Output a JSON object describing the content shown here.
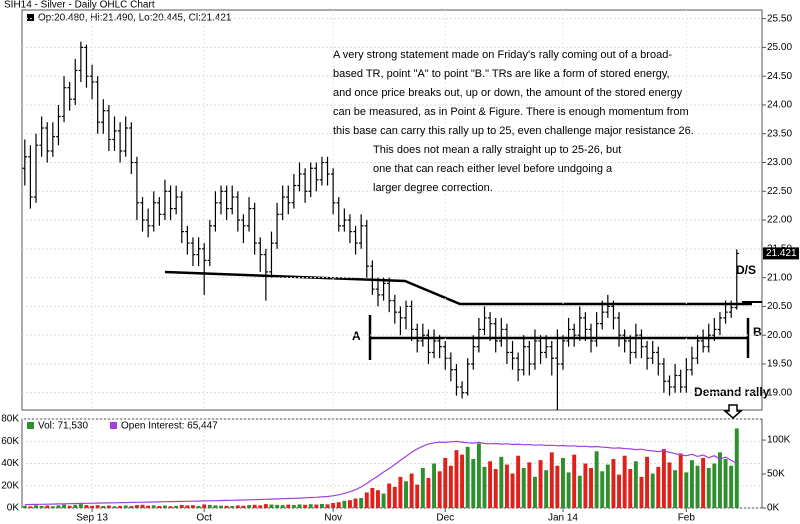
{
  "chart_data": [
    {
      "type": "ohlc",
      "title": "SIH14 - Silver - Daily OHLC Chart",
      "legend_text": "Op:20.480, Hi:21.490, Lo:20.445, Cl:21.421",
      "color": "#000000",
      "categories": [
        null,
        null,
        null,
        null,
        null,
        null,
        null,
        null,
        null,
        null,
        null,
        null,
        "Sep 13",
        null,
        null,
        null,
        null,
        null,
        null,
        null,
        null,
        null,
        null,
        null,
        null,
        null,
        null,
        null,
        null,
        null,
        null,
        null,
        "Oct",
        null,
        null,
        null,
        null,
        null,
        null,
        null,
        null,
        null,
        null,
        null,
        null,
        null,
        null,
        null,
        null,
        null,
        null,
        null,
        null,
        null,
        null,
        "Nov",
        null,
        null,
        null,
        null,
        null,
        null,
        null,
        null,
        null,
        null,
        null,
        null,
        null,
        null,
        null,
        null,
        null,
        null,
        null,
        "Dec",
        null,
        null,
        null,
        null,
        null,
        null,
        null,
        null,
        null,
        null,
        null,
        null,
        null,
        null,
        null,
        null,
        null,
        null,
        null,
        null,
        "Jan 14",
        null,
        null,
        null,
        null,
        null,
        null,
        null,
        null,
        null,
        null,
        null,
        null,
        null,
        null,
        null,
        null,
        null,
        null,
        null,
        null,
        null,
        "Feb",
        null,
        null,
        null,
        null,
        null,
        null,
        null,
        null,
        null
      ],
      "open": [
        22.9,
        23.1,
        22.4,
        23.3,
        23.6,
        23.2,
        23.45,
        23.8,
        24.3,
        24.1,
        24.6,
        25.0,
        24.5,
        24.4,
        23.7,
        23.9,
        23.4,
        23.55,
        23.2,
        23.6,
        23.0,
        22.3,
        22.0,
        21.9,
        22.3,
        22.1,
        22.5,
        22.2,
        22.4,
        21.8,
        21.6,
        21.4,
        21.5,
        21.3,
        21.9,
        22.3,
        22.5,
        22.2,
        22.4,
        22.0,
        21.9,
        22.2,
        21.6,
        21.4,
        21.1,
        21.6,
        22.1,
        22.4,
        22.3,
        22.6,
        22.8,
        22.5,
        22.9,
        22.7,
        23.0,
        22.8,
        22.3,
        21.9,
        22.0,
        21.8,
        21.6,
        21.9,
        21.2,
        20.8,
        20.7,
        20.9,
        20.6,
        20.4,
        20.3,
        20.5,
        20.1,
        19.9,
        20.0,
        19.7,
        19.9,
        19.8,
        19.6,
        19.4,
        19.1,
        19.0,
        19.5,
        19.8,
        20.1,
        20.3,
        20.2,
        19.9,
        20.1,
        19.7,
        19.6,
        19.4,
        19.8,
        19.5,
        19.9,
        19.7,
        19.8,
        19.6,
        19.5,
        19.9,
        20.1,
        20.0,
        20.3,
        20.1,
        19.9,
        20.2,
        20.4,
        20.5,
        20.3,
        20.0,
        19.9,
        19.7,
        20.0,
        19.8,
        19.6,
        19.7,
        19.5,
        19.2,
        19.1,
        19.3,
        19.1,
        19.4,
        19.6,
        19.9,
        19.8,
        20.0,
        20.1,
        20.3,
        20.4,
        20.48
      ],
      "high": [
        23.4,
        23.3,
        23.5,
        23.8,
        23.7,
        23.7,
        24.0,
        24.5,
        24.4,
        24.8,
        25.1,
        25.05,
        24.7,
        24.5,
        24.1,
        24.0,
        23.8,
        23.7,
        23.8,
        23.7,
        23.1,
        22.4,
        22.2,
        22.5,
        22.4,
        22.7,
        22.6,
        22.6,
        22.5,
        21.9,
        21.7,
        21.7,
        21.6,
        22.0,
        22.5,
        22.6,
        22.6,
        22.6,
        22.5,
        22.1,
        22.4,
        22.3,
        21.7,
        21.5,
        21.8,
        22.3,
        22.6,
        22.6,
        22.8,
        23.0,
        22.9,
        23.0,
        23.0,
        23.1,
        23.1,
        22.9,
        22.4,
        22.2,
        22.1,
        21.9,
        22.1,
        22.0,
        21.3,
        21.0,
        21.0,
        21.0,
        20.7,
        20.5,
        20.6,
        20.6,
        20.2,
        20.2,
        20.1,
        20.1,
        20.0,
        19.9,
        19.7,
        19.5,
        19.2,
        19.6,
        20.0,
        20.3,
        20.5,
        20.4,
        20.3,
        20.3,
        20.2,
        19.9,
        19.7,
        20.0,
        19.9,
        20.1,
        20.0,
        20.0,
        19.9,
        20.1,
        20.0,
        20.3,
        20.2,
        20.5,
        20.4,
        20.2,
        20.4,
        20.6,
        20.7,
        20.6,
        20.4,
        20.1,
        20.0,
        20.2,
        20.1,
        19.9,
        19.9,
        19.8,
        19.6,
        19.3,
        19.5,
        19.4,
        19.6,
        19.8,
        20.0,
        20.1,
        20.2,
        20.3,
        20.4,
        20.6,
        20.6,
        21.49
      ],
      "low": [
        22.6,
        22.2,
        22.3,
        23.1,
        23.0,
        23.1,
        23.3,
        23.7,
        23.9,
        24.0,
        24.4,
        24.3,
        24.1,
        23.5,
        23.5,
        23.2,
        23.2,
        23.0,
        23.1,
        22.8,
        22.0,
        21.8,
        21.7,
        21.8,
        21.9,
        22.0,
        22.0,
        22.1,
        21.6,
        21.4,
        21.2,
        21.2,
        20.7,
        21.2,
        21.8,
        22.1,
        22.0,
        22.1,
        21.8,
        21.6,
        21.8,
        21.4,
        21.1,
        20.6,
        21.0,
        21.5,
        22.0,
        22.1,
        22.2,
        22.5,
        22.3,
        22.4,
        22.5,
        22.6,
        22.6,
        22.1,
        21.8,
        21.8,
        21.6,
        21.4,
        21.5,
        21.0,
        20.7,
        20.5,
        20.6,
        20.4,
        20.2,
        20.0,
        20.1,
        19.9,
        19.7,
        19.8,
        19.5,
        19.6,
        19.6,
        19.4,
        19.2,
        18.95,
        18.9,
        18.95,
        19.4,
        19.7,
        20.0,
        19.9,
        19.7,
        19.8,
        19.5,
        19.4,
        19.2,
        19.3,
        19.3,
        19.4,
        19.5,
        19.6,
        19.3,
        18.7,
        19.4,
        19.8,
        19.8,
        19.9,
        19.9,
        19.7,
        19.8,
        20.1,
        20.3,
        20.1,
        19.8,
        19.7,
        19.5,
        19.6,
        19.6,
        19.4,
        19.5,
        19.3,
        19.0,
        18.95,
        19.0,
        19.0,
        19.0,
        19.3,
        19.5,
        19.7,
        19.7,
        19.9,
        20.0,
        20.2,
        20.3,
        20.445
      ],
      "close": [
        23.1,
        22.4,
        23.3,
        23.6,
        23.2,
        23.45,
        23.8,
        24.3,
        24.1,
        24.6,
        25.0,
        24.5,
        24.4,
        23.7,
        23.9,
        23.4,
        23.55,
        23.2,
        23.6,
        23.0,
        22.3,
        22.0,
        21.9,
        22.3,
        22.1,
        22.5,
        22.2,
        22.4,
        21.8,
        21.6,
        21.4,
        21.5,
        21.3,
        21.9,
        22.3,
        22.5,
        22.2,
        22.4,
        22.0,
        21.9,
        22.2,
        21.6,
        21.4,
        21.1,
        21.6,
        22.1,
        22.4,
        22.3,
        22.6,
        22.8,
        22.5,
        22.9,
        22.7,
        23.0,
        22.8,
        22.3,
        21.9,
        22.0,
        21.8,
        21.6,
        21.9,
        21.2,
        20.8,
        20.7,
        20.9,
        20.6,
        20.4,
        20.3,
        20.5,
        20.1,
        19.9,
        20.0,
        19.7,
        19.9,
        19.8,
        19.6,
        19.4,
        19.1,
        19.0,
        19.5,
        19.8,
        20.1,
        20.3,
        20.2,
        19.9,
        20.1,
        19.7,
        19.6,
        19.4,
        19.8,
        19.5,
        19.9,
        19.7,
        19.8,
        19.6,
        19.5,
        19.9,
        20.1,
        20.0,
        20.3,
        20.1,
        19.9,
        20.2,
        20.4,
        20.5,
        20.3,
        20.0,
        19.9,
        19.7,
        20.0,
        19.8,
        19.6,
        19.7,
        19.5,
        19.2,
        19.1,
        19.3,
        19.1,
        19.4,
        19.6,
        19.9,
        19.8,
        20.0,
        20.1,
        20.3,
        20.4,
        20.48,
        21.421
      ],
      "ylim": [
        18.7,
        25.65
      ],
      "yticks": [
        {
          "value": 19,
          "label": "19.00"
        },
        {
          "value": 19.5,
          "label": "19.50"
        },
        {
          "value": 20,
          "label": "20.00"
        },
        {
          "value": 20.5,
          "label": "20.50"
        },
        {
          "value": 21,
          "label": "21.00"
        },
        {
          "value": 21.5,
          "label": "21.50"
        },
        {
          "value": 22,
          "label": "22.00"
        },
        {
          "value": 22.5,
          "label": "22.50"
        },
        {
          "value": 23,
          "label": "23.00"
        },
        {
          "value": 23.5,
          "label": "23.50"
        },
        {
          "value": 24,
          "label": "24.00"
        },
        {
          "value": 24.5,
          "label": "24.50"
        },
        {
          "value": 25,
          "label": "25.00"
        },
        {
          "value": 25.5,
          "label": "25.50"
        }
      ],
      "grid": true,
      "annotations": {
        "paragraph_1": [
          "A very strong statement made on Friday's rally coming out of a broad-",
          "based TR, point \"A\" to point \"B.\"  TRs are like a form of stored energy,",
          "and once price breaks out, up or down, the amount of the stored energy",
          "can be measured, as in Point & Figure.  There is enough momentum from",
          "this base can carry this rally up to 25, even challenge major resistance 26."
        ],
        "paragraph_2": [
          "This does not mean a rally straight up to 25-26, but",
          "one that can reach either level before undgoing a",
          "larger degree correction."
        ],
        "point_a": "A",
        "point_b": "B",
        "ds": "D/S",
        "demand": "Demand rally"
      }
    },
    {
      "type": "bar",
      "series": [
        {
          "name": "Vol: 71,530",
          "up_color": "#2f8f2f",
          "down_color": "#e0201a",
          "values": [
            2000,
            1500,
            2500,
            1800,
            2200,
            1600,
            2400,
            3000,
            2000,
            2800,
            3500,
            2600,
            2000,
            2500,
            1800,
            2200,
            1500,
            1900,
            2300,
            1700,
            2600,
            2900,
            2100,
            2400,
            1800,
            2200,
            1600,
            2000,
            2700,
            2300,
            2500,
            1900,
            3200,
            2800,
            2400,
            2100,
            2000,
            1800,
            2300,
            2100,
            2600,
            2900,
            2400,
            3500,
            3100,
            2800,
            2600,
            3000,
            2700,
            3200,
            2900,
            3400,
            3100,
            3600,
            3300,
            4500,
            5200,
            6500,
            7000,
            8500,
            9000,
            14000,
            18000,
            16000,
            13000,
            22000,
            19000,
            28000,
            24000,
            31000,
            21000,
            36000,
            27000,
            40000,
            33000,
            45000,
            38000,
            52000,
            48000,
            55000,
            44000,
            58000,
            37000,
            42000,
            35000,
            46000,
            39000,
            31000,
            47000,
            36000,
            41000,
            28000,
            43000,
            34000,
            50000,
            38000,
            45000,
            32000,
            48000,
            29000,
            40000,
            36000,
            51000,
            33000,
            39000,
            44000,
            30000,
            47000,
            35000,
            42000,
            28000,
            46000,
            31000,
            37000,
            53000,
            41000,
            34000,
            49000,
            32000,
            43000,
            38000,
            45000,
            36000,
            40000,
            50000,
            44000,
            38000,
            71530
          ]
        },
        {
          "name": "Open Interest: 65,447",
          "color": "#a040e0",
          "axis": "y2",
          "values": [
            5000,
            5100,
            5300,
            5400,
            5600,
            5800,
            6000,
            6100,
            6300,
            6500,
            6700,
            6900,
            7000,
            7200,
            7400,
            7500,
            7700,
            7900,
            8000,
            8200,
            8400,
            8500,
            8700,
            8900,
            9000,
            9200,
            9400,
            9500,
            9700,
            9900,
            10000,
            10200,
            10400,
            10600,
            10800,
            11000,
            11200,
            11400,
            11600,
            11800,
            12000,
            12200,
            12500,
            12800,
            13100,
            13400,
            13700,
            14000,
            14300,
            14600,
            15000,
            15400,
            15800,
            16300,
            17000,
            18000,
            19500,
            21500,
            24000,
            27000,
            31000,
            36000,
            42000,
            47000,
            53000,
            58000,
            64000,
            70000,
            76000,
            82000,
            87000,
            91000,
            94000,
            96000,
            97000,
            96500,
            97500,
            98000,
            97000,
            96000,
            95500,
            96500,
            95000,
            94500,
            95000,
            94000,
            94500,
            93500,
            94000,
            93000,
            93500,
            92500,
            93000,
            92000,
            92500,
            91500,
            92000,
            91000,
            91500,
            90500,
            91000,
            90000,
            90500,
            89500,
            89000,
            88000,
            88500,
            87500,
            87000,
            86000,
            86500,
            85000,
            84000,
            83000,
            84000,
            82000,
            80000,
            78000,
            77000,
            79000,
            76000,
            78000,
            74000,
            77000,
            72000,
            75000,
            70000,
            65447
          ]
        }
      ],
      "ylim": [
        0,
        80000
      ],
      "yticks": [
        {
          "value": 0,
          "label": "0K"
        },
        {
          "value": 20000,
          "label": "20K"
        },
        {
          "value": 40000,
          "label": "40K"
        },
        {
          "value": 60000,
          "label": "60K"
        },
        {
          "value": 80000,
          "label": "80K"
        }
      ],
      "y2lim": [
        0,
        131000
      ],
      "y2ticks": [
        {
          "value": 0,
          "label": "0K"
        },
        {
          "value": 50000,
          "label": "50K"
        },
        {
          "value": 100000,
          "label": "100K"
        }
      ],
      "grid": true
    }
  ]
}
